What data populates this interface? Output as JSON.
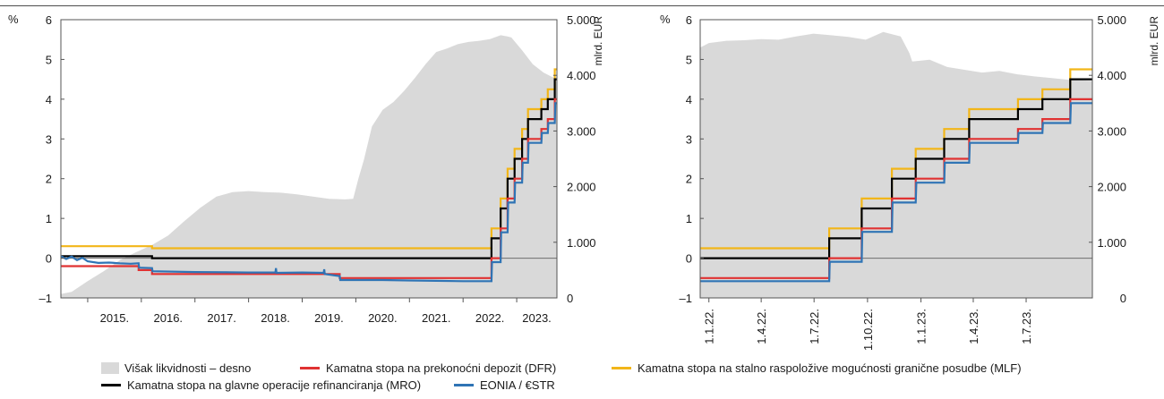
{
  "colors": {
    "liquidity": "#d9d9d9",
    "dfr": "#e03232",
    "mlf": "#f2b619",
    "mro": "#000000",
    "eonia": "#2f74b5",
    "rule": "#4d4d4d"
  },
  "legend": [
    {
      "key": "liquidity",
      "label": "Višak likvidnosti – desno",
      "kind": "box"
    },
    {
      "key": "dfr",
      "label": "Kamatna stopa na prekonoćni depozit (DFR)",
      "kind": "line"
    },
    {
      "key": "mlf",
      "label": "Kamatna stopa na stalno raspoložive mogućnosti granične posudbe (MLF)",
      "kind": "line"
    },
    {
      "key": "mro",
      "label": "Kamatna stopa na glavne operacije refinanciranja (MRO)",
      "kind": "line"
    },
    {
      "key": "eonia",
      "label": "EONIA / €STR",
      "kind": "line"
    }
  ],
  "chart_data": [
    {
      "type": "line",
      "left_unit": "%",
      "right_unit": "mlrd. EUR",
      "x_tick_labels": [
        "2015.",
        "2016.",
        "2017.",
        "2018.",
        "2019.",
        "2020.",
        "2021.",
        "2022.",
        "2023."
      ],
      "x_tick_values": [
        2015.0,
        2016.0,
        2017.0,
        2018.0,
        2019.0,
        2020.0,
        2021.0,
        2022.0,
        2023.0
      ],
      "xlim": [
        2014.5,
        2023.75
      ],
      "ylim": [
        -1,
        6
      ],
      "y_ticks": [
        "–1",
        "0",
        "1",
        "2",
        "3",
        "4",
        "5",
        "6"
      ],
      "y2lim": [
        0,
        5000
      ],
      "y2_ticks": [
        "0",
        "1.000",
        "2.000",
        "3.000",
        "4.000",
        "5.000"
      ],
      "series": [
        {
          "key": "mlf",
          "name": "Kamatna stopa na stalno raspoložive mogućnosti granične posudbe (MLF)",
          "axis": "left",
          "x": [
            2014.5,
            2016.2,
            2016.2,
            2022.53,
            2022.53,
            2022.7,
            2022.7,
            2022.83,
            2022.83,
            2022.96,
            2022.96,
            2023.1,
            2023.1,
            2023.21,
            2023.21,
            2023.46,
            2023.46,
            2023.58,
            2023.58,
            2023.71,
            2023.71,
            2023.75
          ],
          "y": [
            0.3,
            0.3,
            0.25,
            0.25,
            0.75,
            0.75,
            1.5,
            1.5,
            2.25,
            2.25,
            2.75,
            2.75,
            3.25,
            3.25,
            3.75,
            3.75,
            4.0,
            4.0,
            4.25,
            4.25,
            4.75,
            4.75
          ]
        },
        {
          "key": "mro",
          "name": "Kamatna stopa na glavne operacije refinanciranja (MRO)",
          "axis": "left",
          "x": [
            2014.5,
            2016.2,
            2016.2,
            2022.53,
            2022.53,
            2022.7,
            2022.7,
            2022.83,
            2022.83,
            2022.96,
            2022.96,
            2023.1,
            2023.1,
            2023.21,
            2023.21,
            2023.46,
            2023.46,
            2023.58,
            2023.58,
            2023.71,
            2023.71,
            2023.75
          ],
          "y": [
            0.05,
            0.05,
            0.0,
            0.0,
            0.5,
            0.5,
            1.25,
            1.25,
            2.0,
            2.0,
            2.5,
            2.5,
            3.0,
            3.0,
            3.5,
            3.5,
            3.75,
            3.75,
            4.0,
            4.0,
            4.5,
            4.5
          ]
        },
        {
          "key": "dfr",
          "name": "Kamatna stopa na prekonoćni depozit (DFR)",
          "axis": "left",
          "x": [
            2014.5,
            2015.95,
            2015.95,
            2016.2,
            2016.2,
            2019.7,
            2019.7,
            2022.53,
            2022.53,
            2022.7,
            2022.7,
            2022.83,
            2022.83,
            2022.96,
            2022.96,
            2023.1,
            2023.1,
            2023.21,
            2023.21,
            2023.46,
            2023.46,
            2023.58,
            2023.58,
            2023.71,
            2023.71,
            2023.75
          ],
          "y": [
            -0.2,
            -0.2,
            -0.3,
            -0.3,
            -0.4,
            -0.4,
            -0.5,
            -0.5,
            0.0,
            0.0,
            0.75,
            0.75,
            1.5,
            1.5,
            2.0,
            2.0,
            2.5,
            2.5,
            3.0,
            3.0,
            3.25,
            3.25,
            3.5,
            3.5,
            4.0,
            4.0
          ]
        },
        {
          "key": "eonia",
          "name": "EONIA / €STR",
          "axis": "left",
          "x": [
            2014.5,
            2014.6,
            2014.7,
            2014.8,
            2014.9,
            2015.0,
            2015.2,
            2015.4,
            2015.6,
            2015.8,
            2015.95,
            2015.96,
            2016.2,
            2016.21,
            2017.0,
            2018.0,
            2018.5,
            2018.51,
            2018.52,
            2019.0,
            2019.4,
            2019.41,
            2019.42,
            2019.7,
            2019.71,
            2020.5,
            2021.0,
            2021.5,
            2022.0,
            2022.4,
            2022.53,
            2022.54,
            2022.7,
            2022.71,
            2022.83,
            2022.84,
            2022.96,
            2022.97,
            2023.1,
            2023.11,
            2023.21,
            2023.22,
            2023.46,
            2023.47,
            2023.58,
            2023.59,
            2023.71,
            2023.72,
            2023.75
          ],
          "y": [
            0.05,
            -0.02,
            0.04,
            -0.05,
            0.01,
            -0.08,
            -0.12,
            -0.11,
            -0.13,
            -0.14,
            -0.13,
            -0.24,
            -0.25,
            -0.33,
            -0.35,
            -0.36,
            -0.36,
            -0.25,
            -0.37,
            -0.36,
            -0.37,
            -0.28,
            -0.4,
            -0.45,
            -0.55,
            -0.55,
            -0.56,
            -0.57,
            -0.58,
            -0.58,
            -0.58,
            -0.1,
            -0.1,
            0.65,
            0.65,
            1.4,
            1.4,
            1.9,
            1.9,
            2.4,
            2.4,
            2.9,
            2.9,
            3.15,
            3.15,
            3.4,
            3.4,
            3.9,
            3.9
          ]
        }
      ],
      "area": {
        "key": "liquidity",
        "name": "Višak likvidnosti – desno",
        "axis": "right",
        "x": [
          2014.5,
          2014.7,
          2015.0,
          2015.3,
          2015.6,
          2015.9,
          2016.2,
          2016.5,
          2016.8,
          2017.1,
          2017.4,
          2017.7,
          2018.0,
          2018.3,
          2018.6,
          2018.9,
          2019.2,
          2019.5,
          2019.8,
          2019.95,
          2020.05,
          2020.15,
          2020.3,
          2020.5,
          2020.7,
          2020.9,
          2021.1,
          2021.3,
          2021.5,
          2021.7,
          2021.9,
          2022.1,
          2022.3,
          2022.5,
          2022.7,
          2022.83,
          2022.9,
          2023.1,
          2023.3,
          2023.5,
          2023.7,
          2023.75
        ],
        "y": [
          70,
          110,
          300,
          480,
          680,
          820,
          950,
          1120,
          1380,
          1620,
          1820,
          1900,
          1920,
          1900,
          1890,
          1860,
          1820,
          1780,
          1770,
          1780,
          2150,
          2480,
          3080,
          3380,
          3520,
          3720,
          3950,
          4200,
          4420,
          4480,
          4560,
          4600,
          4620,
          4650,
          4720,
          4700,
          4680,
          4450,
          4200,
          4050,
          3950,
          3900
        ]
      }
    },
    {
      "type": "line",
      "left_unit": "%",
      "right_unit": "mlrd. EUR",
      "x_tick_labels": [
        "1.1.22.",
        "1.4.22.",
        "1.7.22.",
        "1.10.22.",
        "1.1.23.",
        "1.4.23.",
        "1.7.23."
      ],
      "x_tick_values": [
        0,
        90,
        181,
        273,
        365,
        455,
        546
      ],
      "xlim": [
        -15,
        660
      ],
      "ylim": [
        -1,
        6
      ],
      "y_ticks": [
        "–1",
        "0",
        "1",
        "2",
        "3",
        "4",
        "5",
        "6"
      ],
      "y2lim": [
        0,
        5000
      ],
      "y2_ticks": [
        "0",
        "1.000",
        "2.000",
        "3.000",
        "4.000",
        "5.000"
      ],
      "series": [
        {
          "key": "mlf",
          "name": "Kamatna stopa na stalno raspoložive mogućnosti granične posudbe (MLF)",
          "axis": "left",
          "x": [
            -15,
            207,
            207,
            263,
            263,
            315,
            315,
            356,
            356,
            405,
            405,
            448,
            448,
            532,
            532,
            574,
            574,
            622,
            622,
            660
          ],
          "y": [
            0.25,
            0.25,
            0.75,
            0.75,
            1.5,
            1.5,
            2.25,
            2.25,
            2.75,
            2.75,
            3.25,
            3.25,
            3.75,
            3.75,
            4.0,
            4.0,
            4.25,
            4.25,
            4.75,
            4.75
          ]
        },
        {
          "key": "mro",
          "name": "Kamatna stopa na glavne operacije refinanciranja (MRO)",
          "axis": "left",
          "x": [
            -15,
            207,
            207,
            263,
            263,
            315,
            315,
            356,
            356,
            405,
            405,
            448,
            448,
            532,
            532,
            574,
            574,
            622,
            622,
            660
          ],
          "y": [
            0.0,
            0.0,
            0.5,
            0.5,
            1.25,
            1.25,
            2.0,
            2.0,
            2.5,
            2.5,
            3.0,
            3.0,
            3.5,
            3.5,
            3.75,
            3.75,
            4.0,
            4.0,
            4.5,
            4.5
          ]
        },
        {
          "key": "dfr",
          "name": "Kamatna stopa na prekonoćni depozit (DFR)",
          "axis": "left",
          "x": [
            -15,
            207,
            207,
            263,
            263,
            315,
            315,
            356,
            356,
            405,
            405,
            448,
            448,
            532,
            532,
            574,
            574,
            622,
            622,
            660
          ],
          "y": [
            -0.5,
            -0.5,
            0.0,
            0.0,
            0.75,
            0.75,
            1.5,
            1.5,
            2.0,
            2.0,
            2.5,
            2.5,
            3.0,
            3.0,
            3.25,
            3.25,
            3.5,
            3.5,
            4.0,
            4.0
          ]
        },
        {
          "key": "eonia",
          "name": "EONIA / €STR",
          "axis": "left",
          "x": [
            -15,
            80,
            160,
            207,
            208,
            263,
            264,
            315,
            316,
            356,
            357,
            405,
            406,
            448,
            449,
            532,
            533,
            574,
            575,
            622,
            623,
            660
          ],
          "y": [
            -0.58,
            -0.58,
            -0.58,
            -0.58,
            -0.09,
            -0.09,
            0.66,
            0.66,
            1.4,
            1.4,
            1.9,
            1.9,
            2.4,
            2.4,
            2.9,
            2.9,
            3.15,
            3.15,
            3.4,
            3.4,
            3.9,
            3.9
          ]
        }
      ],
      "area": {
        "key": "liquidity",
        "name": "Višak likvidnosti – desno",
        "axis": "right",
        "x": [
          -15,
          0,
          30,
          60,
          90,
          120,
          150,
          180,
          210,
          240,
          270,
          300,
          330,
          345,
          350,
          380,
          410,
          440,
          470,
          500,
          530,
          560,
          590,
          620,
          660
        ],
        "y": [
          4500,
          4580,
          4620,
          4630,
          4650,
          4640,
          4700,
          4750,
          4720,
          4690,
          4640,
          4780,
          4700,
          4400,
          4250,
          4280,
          4150,
          4100,
          4050,
          4080,
          4020,
          3980,
          3950,
          3920,
          3900
        ]
      }
    }
  ]
}
